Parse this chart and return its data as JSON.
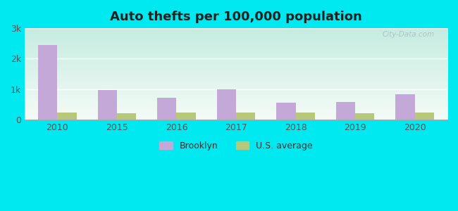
{
  "title": "Auto thefts per 100,000 population",
  "years": [
    2010,
    2015,
    2016,
    2017,
    2018,
    2019,
    2020
  ],
  "brooklyn_values": [
    2450,
    980,
    730,
    1000,
    570,
    590,
    830
  ],
  "us_avg_values": [
    230,
    210,
    225,
    225,
    230,
    210,
    230
  ],
  "brooklyn_color": "#c4a8d8",
  "us_avg_color": "#b8c87a",
  "ylim": [
    0,
    3000
  ],
  "yticks": [
    0,
    1000,
    2000,
    3000
  ],
  "ytick_labels": [
    "0",
    "1k",
    "2k",
    "3k"
  ],
  "bar_width": 0.32,
  "legend_brooklyn": "Brooklyn",
  "legend_us": "U.S. average",
  "watermark": "City-Data.com",
  "outer_bg": "#00e8f0",
  "plot_bg_top": "#c8ede0",
  "plot_bg_bottom": "#f2faf5"
}
